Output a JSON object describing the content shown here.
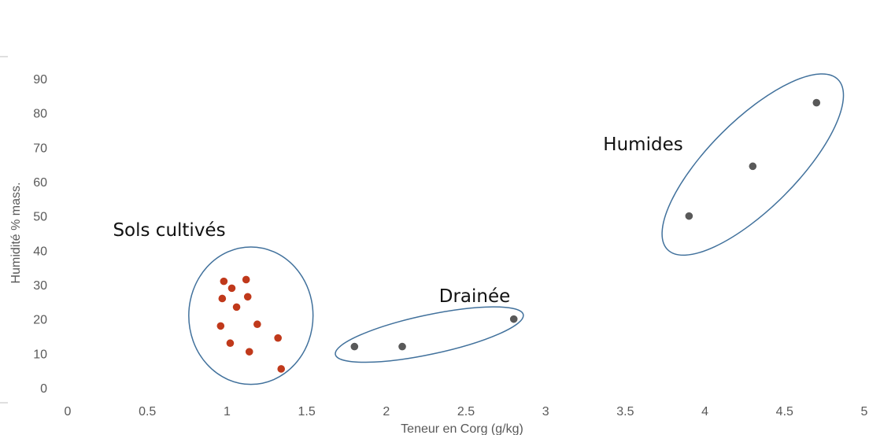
{
  "chart_data": {
    "type": "scatter",
    "title": "",
    "xlabel": "Teneur en Corg (g/kg)",
    "ylabel": "Humidité % mass.",
    "xlim": [
      0,
      5
    ],
    "ylim": [
      0,
      90
    ],
    "x_ticks": [
      "0",
      "0.5",
      "1",
      "1.5",
      "2",
      "2.5",
      "3",
      "3.5",
      "4",
      "4.5",
      "5"
    ],
    "y_ticks": [
      "0",
      "10",
      "20",
      "30",
      "40",
      "50",
      "60",
      "70",
      "80",
      "90"
    ],
    "grid": false,
    "series": [
      {
        "color": "#c0391b",
        "points": [
          {
            "x": 0.98,
            "y": 31
          },
          {
            "x": 1.12,
            "y": 31.5
          },
          {
            "x": 1.03,
            "y": 29
          },
          {
            "x": 0.97,
            "y": 26
          },
          {
            "x": 1.13,
            "y": 26.5
          },
          {
            "x": 1.06,
            "y": 23.5
          },
          {
            "x": 0.96,
            "y": 18
          },
          {
            "x": 1.19,
            "y": 18.5
          },
          {
            "x": 1.32,
            "y": 14.5
          },
          {
            "x": 1.02,
            "y": 13
          },
          {
            "x": 1.14,
            "y": 10.5
          },
          {
            "x": 1.34,
            "y": 5.5
          }
        ]
      },
      {
        "color": "#595959",
        "points": [
          {
            "x": 1.8,
            "y": 12
          },
          {
            "x": 2.1,
            "y": 12
          },
          {
            "x": 2.8,
            "y": 20
          },
          {
            "x": 3.9,
            "y": 50
          },
          {
            "x": 4.3,
            "y": 64.5
          },
          {
            "x": 4.7,
            "y": 83
          }
        ]
      }
    ],
    "groups": [
      {
        "label": "Sols cultivés",
        "cx": 1.15,
        "cy": 21,
        "rx": 0.39,
        "ry": 20,
        "angle": 0
      },
      {
        "label": "Drainée",
        "cx": 2.27,
        "cy": 15.5,
        "rx": 0.62,
        "ry": 5.6,
        "angle": -12
      },
      {
        "label": "Humides",
        "cx": 4.3,
        "cy": 65,
        "rx": 0.75,
        "ry": 12.5,
        "angle": -45
      }
    ],
    "group_outline_color": "#41719c"
  }
}
